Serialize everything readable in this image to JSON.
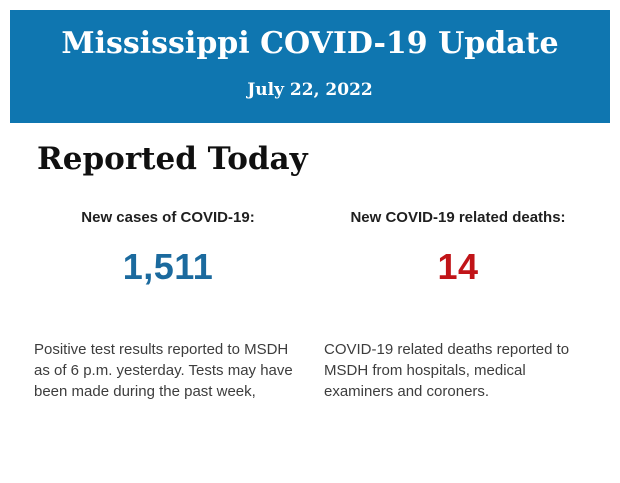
{
  "header": {
    "title": "Mississippi COVID-19 Update",
    "date": "July 22, 2022",
    "background_color": "#0F76B0",
    "text_color": "#FFFFFF"
  },
  "main": {
    "section_title": "Reported Today",
    "stats": [
      {
        "label": "New cases of COVID-19:",
        "value": "1,511",
        "value_color": "#1B6A9E",
        "description": "Positive test results reported to MSDH as of 6 p.m. yesterday. Tests may have been made during the past week,"
      },
      {
        "label": "New COVID-19 related deaths:",
        "value": "14",
        "value_color": "#C11418",
        "description": "COVID-19 related deaths reported to MSDH from hospitals, medical examiners and coroners."
      }
    ]
  }
}
